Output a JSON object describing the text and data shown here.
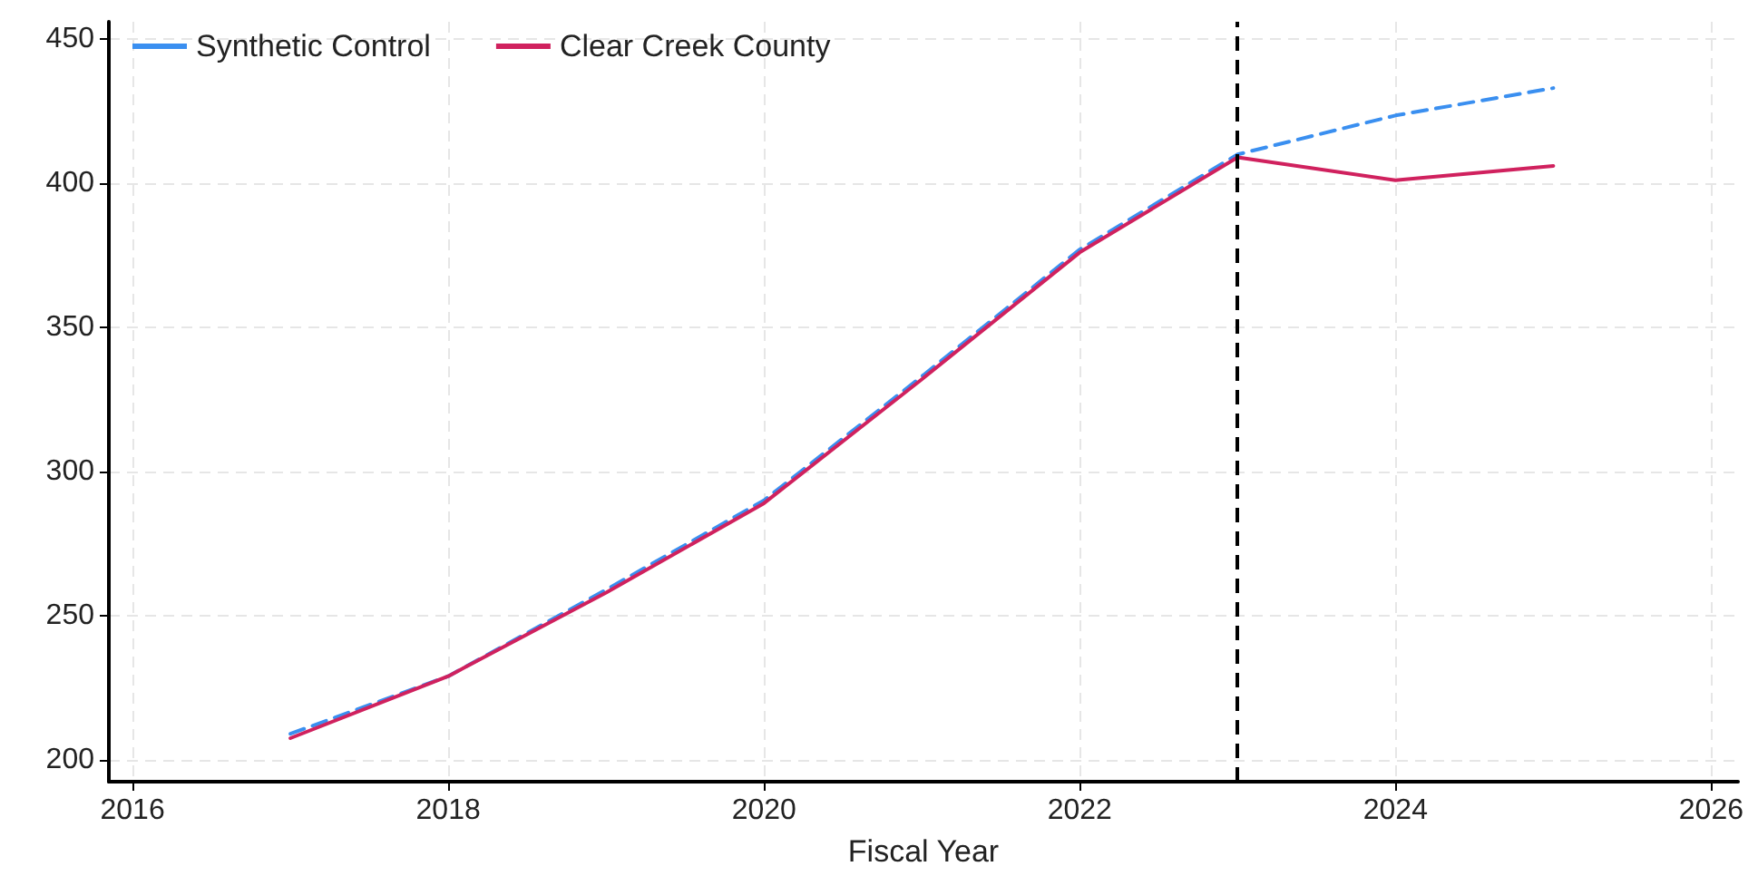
{
  "chart_data": {
    "type": "line",
    "xlabel": "Fiscal Year",
    "x": [
      2017,
      2018,
      2019,
      2020,
      2021,
      2022,
      2023,
      2024,
      2025
    ],
    "series": [
      {
        "name": "Synthetic Control",
        "color": "#3a8ff0",
        "line_style": "dashed",
        "values": [
          209,
          229,
          259,
          290,
          333,
          377,
          410,
          423.5,
          433
        ]
      },
      {
        "name": "Clear Creek County",
        "color": "#d0215e",
        "line_style": "solid",
        "values": [
          207.5,
          229,
          258,
          289,
          332,
          376,
          409,
          401,
          406
        ]
      }
    ],
    "xlim": [
      2015.85,
      2026.17
    ],
    "xticks": [
      2016,
      2018,
      2020,
      2022,
      2024,
      2026
    ],
    "ylim": [
      192.4,
      456
    ],
    "yticks": [
      200,
      250,
      300,
      350,
      400,
      450
    ],
    "ref_lines": [
      {
        "axis": "x",
        "value": 2023,
        "color": "#000000",
        "line_style": "dashed"
      }
    ],
    "grid": true,
    "legend": "top left",
    "marker": "none"
  }
}
